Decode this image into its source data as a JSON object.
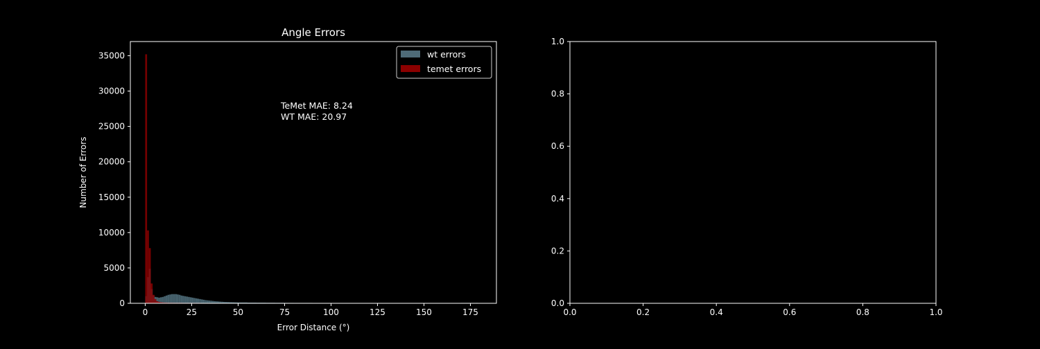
{
  "colors": {
    "background": "#000000",
    "foreground": "#ffffff",
    "wt": "#4e6b78",
    "temet": "#8b0000"
  },
  "chart_data": [
    {
      "type": "histogram",
      "title": "Angle Errors",
      "xlabel": "Error Distance (°)",
      "ylabel": "Number of Errors",
      "xlim": [
        -8,
        189
      ],
      "ylim": [
        0,
        37000
      ],
      "xticks": [
        0,
        25,
        50,
        75,
        100,
        125,
        150,
        175
      ],
      "yticks": [
        0,
        5000,
        10000,
        15000,
        20000,
        25000,
        30000,
        35000
      ],
      "bin_width": 1,
      "legend": {
        "position": "top-right"
      },
      "annotation": [
        "TeMet MAE: 8.24",
        "WT MAE: 20.97"
      ],
      "series": [
        {
          "name": "wt errors",
          "color": "#4e6b78",
          "alpha": 0.9,
          "bins": [
            [
              0,
              1000
            ],
            [
              1,
              3700
            ],
            [
              2,
              4900
            ],
            [
              3,
              2000
            ],
            [
              4,
              1100
            ],
            [
              5,
              900
            ],
            [
              6,
              850
            ],
            [
              7,
              800
            ],
            [
              8,
              850
            ],
            [
              9,
              900
            ],
            [
              10,
              1000
            ],
            [
              11,
              1100
            ],
            [
              12,
              1200
            ],
            [
              13,
              1250
            ],
            [
              14,
              1300
            ],
            [
              15,
              1300
            ],
            [
              16,
              1300
            ],
            [
              17,
              1250
            ],
            [
              18,
              1200
            ],
            [
              19,
              1100
            ],
            [
              20,
              1050
            ],
            [
              21,
              1000
            ],
            [
              22,
              950
            ],
            [
              23,
              900
            ],
            [
              24,
              850
            ],
            [
              25,
              800
            ],
            [
              26,
              750
            ],
            [
              27,
              700
            ],
            [
              28,
              650
            ],
            [
              29,
              600
            ],
            [
              30,
              550
            ],
            [
              31,
              500
            ],
            [
              32,
              450
            ],
            [
              33,
              420
            ],
            [
              34,
              390
            ],
            [
              35,
              360
            ],
            [
              36,
              330
            ],
            [
              37,
              300
            ],
            [
              38,
              280
            ],
            [
              39,
              260
            ],
            [
              40,
              240
            ],
            [
              41,
              220
            ],
            [
              42,
              200
            ],
            [
              43,
              190
            ],
            [
              44,
              180
            ],
            [
              45,
              170
            ],
            [
              46,
              160
            ],
            [
              47,
              150
            ],
            [
              48,
              140
            ],
            [
              49,
              130
            ],
            [
              50,
              120
            ],
            [
              55,
              100
            ],
            [
              60,
              90
            ],
            [
              65,
              80
            ],
            [
              70,
              70
            ],
            [
              75,
              60
            ],
            [
              80,
              55
            ],
            [
              90,
              50
            ],
            [
              100,
              45
            ],
            [
              110,
              40
            ],
            [
              120,
              40
            ],
            [
              130,
              40
            ],
            [
              140,
              40
            ],
            [
              150,
              45
            ],
            [
              160,
              50
            ],
            [
              170,
              55
            ],
            [
              178,
              60
            ]
          ]
        },
        {
          "name": "temet errors",
          "color": "#8b0000",
          "alpha": 0.85,
          "bins": [
            [
              0,
              35200
            ],
            [
              1,
              10300
            ],
            [
              2,
              7800
            ],
            [
              3,
              2800
            ],
            [
              4,
              1200
            ],
            [
              5,
              600
            ],
            [
              6,
              300
            ],
            [
              7,
              200
            ],
            [
              8,
              150
            ],
            [
              9,
              120
            ],
            [
              10,
              100
            ],
            [
              12,
              80
            ],
            [
              15,
              70
            ],
            [
              20,
              60
            ],
            [
              30,
              50
            ],
            [
              40,
              40
            ],
            [
              60,
              35
            ],
            [
              80,
              30
            ],
            [
              100,
              30
            ],
            [
              120,
              30
            ],
            [
              140,
              30
            ],
            [
              160,
              30
            ],
            [
              178,
              30
            ]
          ]
        }
      ]
    },
    {
      "type": "empty",
      "xlim": [
        0,
        1
      ],
      "ylim": [
        0,
        1
      ],
      "xticks": [
        "0.0",
        "0.2",
        "0.4",
        "0.6",
        "0.8",
        "1.0"
      ],
      "yticks": [
        "0.0",
        "0.2",
        "0.4",
        "0.6",
        "0.8",
        "1.0"
      ]
    }
  ]
}
